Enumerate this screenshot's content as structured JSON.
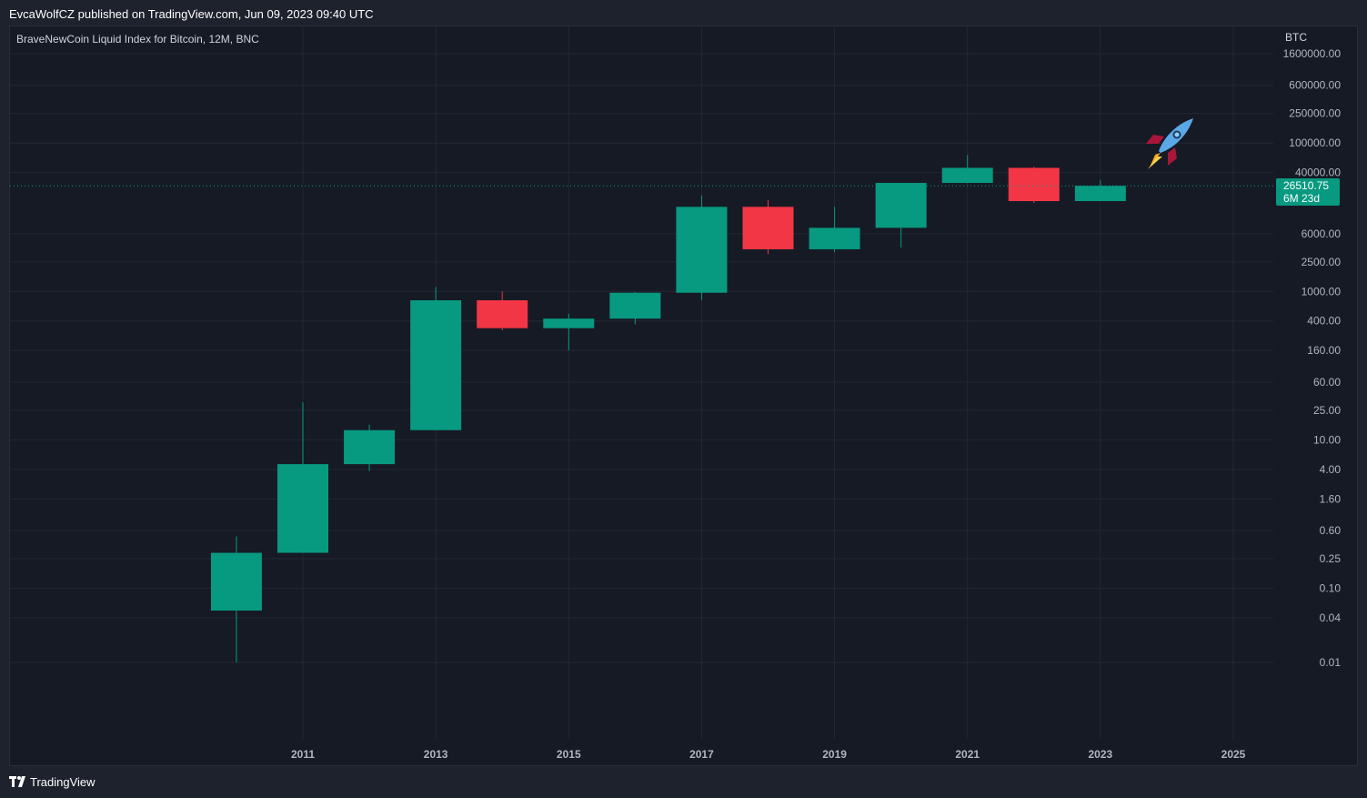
{
  "header": {
    "published_line": "EvcaWolfCZ published on TradingView.com, Jun 09, 2023 09:40 UTC"
  },
  "legend": {
    "title": "BraveNewCoin Liquid Index for Bitcoin, 12M, BNC"
  },
  "price_axis": {
    "currency": "BTC",
    "last_price": "26510.75",
    "countdown": "6M 23d"
  },
  "footer": {
    "brand": "TradingView"
  },
  "colors": {
    "background": "#161a25",
    "grid": "#232734",
    "up": "#089981",
    "down": "#f23645",
    "last_price_line": "#089981"
  },
  "icons": [
    "tradingview-logo-icon",
    "rocket-icon"
  ],
  "chart_data": {
    "type": "candlestick",
    "title": "BraveNewCoin Liquid Index for Bitcoin, 12M, BNC",
    "scale": "log",
    "ylim": [
      0.003,
      2000000
    ],
    "y_tick_labels": [
      "1600000.00",
      "600000.00",
      "250000.00",
      "100000.00",
      "40000.00",
      "6000.00",
      "2500.00",
      "1000.00",
      "400.00",
      "160.00",
      "60.00",
      "25.00",
      "10.00",
      "4.00",
      "1.60",
      "0.60",
      "0.25",
      "0.10",
      "0.04",
      "0.01"
    ],
    "y_tick_values": [
      1600000,
      600000,
      250000,
      100000,
      40000,
      6000,
      2500,
      1000,
      400,
      160,
      60,
      25,
      10,
      4,
      1.6,
      0.6,
      0.25,
      0.1,
      0.04,
      0.01
    ],
    "x_tick_labels": [
      "2011",
      "2013",
      "2015",
      "2017",
      "2019",
      "2021",
      "2023",
      "2025"
    ],
    "x_tick_years": [
      2011,
      2013,
      2015,
      2017,
      2019,
      2021,
      2023,
      2025
    ],
    "candles": [
      {
        "year": 2010,
        "open": 0.05,
        "high": 0.5,
        "low": 0.01,
        "close": 0.3
      },
      {
        "year": 2011,
        "open": 0.3,
        "high": 32,
        "low": 0.3,
        "close": 4.7
      },
      {
        "year": 2012,
        "open": 4.7,
        "high": 16,
        "low": 3.8,
        "close": 13.5
      },
      {
        "year": 2013,
        "open": 13.5,
        "high": 1150,
        "low": 13.5,
        "close": 760
      },
      {
        "year": 2014,
        "open": 760,
        "high": 1000,
        "low": 300,
        "close": 320
      },
      {
        "year": 2015,
        "open": 320,
        "high": 500,
        "low": 160,
        "close": 430
      },
      {
        "year": 2016,
        "open": 430,
        "high": 980,
        "low": 360,
        "close": 960
      },
      {
        "year": 2017,
        "open": 960,
        "high": 19700,
        "low": 760,
        "close": 13800
      },
      {
        "year": 2018,
        "open": 13800,
        "high": 17000,
        "low": 3200,
        "close": 3700
      },
      {
        "year": 2019,
        "open": 3700,
        "high": 13800,
        "low": 3400,
        "close": 7200
      },
      {
        "year": 2020,
        "open": 7200,
        "high": 29000,
        "low": 3900,
        "close": 29000
      },
      {
        "year": 2021,
        "open": 29000,
        "high": 69000,
        "low": 28800,
        "close": 46300
      },
      {
        "year": 2022,
        "open": 46300,
        "high": 48000,
        "low": 15500,
        "close": 16500
      },
      {
        "year": 2023,
        "open": 16500,
        "high": 31500,
        "low": 16500,
        "close": 26510.75
      }
    ],
    "last_price": 26510.75
  }
}
